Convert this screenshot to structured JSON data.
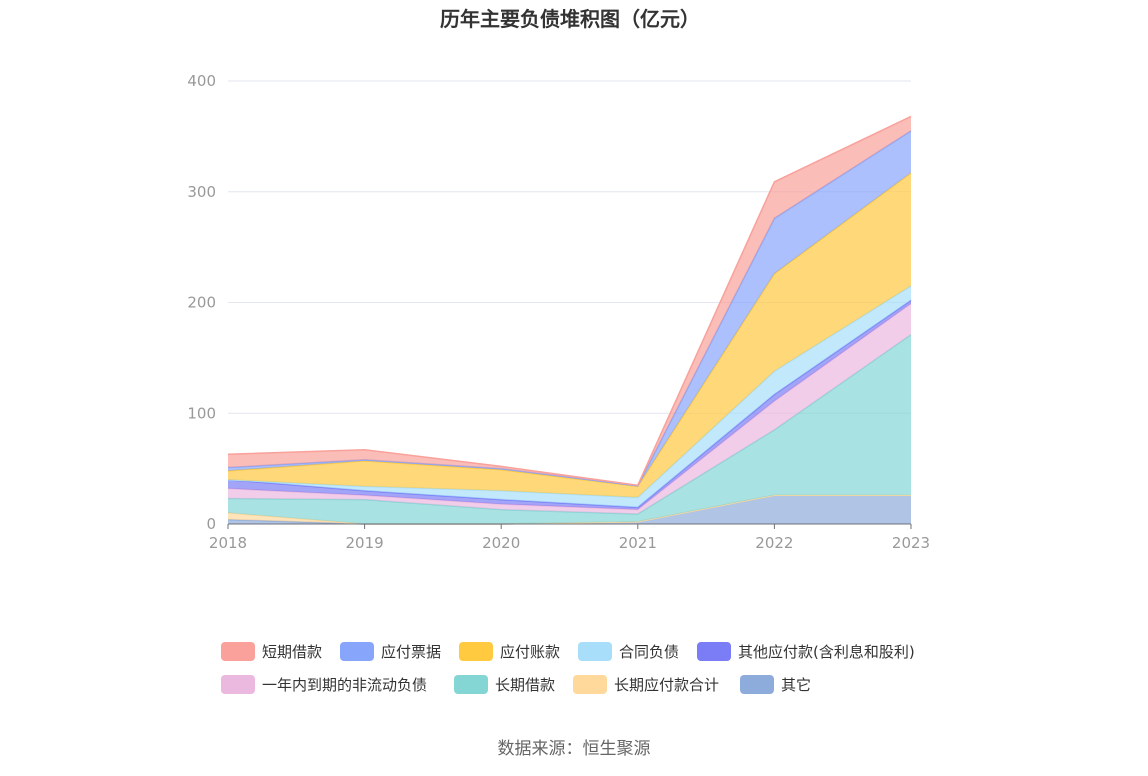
{
  "chart_data": {
    "type": "area",
    "stacked": true,
    "title": "历年主要负债堆积图（亿元）",
    "source": "数据来源：恒生聚源",
    "x": [
      "2018",
      "2019",
      "2020",
      "2021",
      "2022",
      "2023"
    ],
    "yticks": [
      "0",
      "100",
      "200",
      "300",
      "400"
    ],
    "ylim": [
      0,
      400
    ],
    "grid": true,
    "legend_position": "bottom",
    "series_order_bottom_to_top": [
      "其它",
      "长期应付款合计",
      "长期借款",
      "一年内到期的非流动负债",
      "其他应付款(含利息和股利)",
      "合同负债",
      "应付账款",
      "应付票据",
      "短期借款"
    ],
    "series": [
      {
        "name": "短期借款",
        "color": "#F9A19A",
        "values": [
          12,
          9,
          2,
          0.5,
          33,
          13
        ]
      },
      {
        "name": "应付票据",
        "color": "#87A5FB",
        "values": [
          3,
          1,
          1,
          0.5,
          50,
          38
        ]
      },
      {
        "name": "应付账款",
        "color": "#FFC940",
        "values": [
          8,
          23,
          19,
          10,
          88,
          102
        ]
      },
      {
        "name": "合同负债",
        "color": "#A8DEFA",
        "values": [
          0,
          4,
          8,
          9,
          21,
          13
        ]
      },
      {
        "name": "其他应付款(含利息和股利)",
        "color": "#7A7DF5",
        "values": [
          8,
          4,
          4,
          2,
          6,
          3
        ]
      },
      {
        "name": "一年内到期的非流动负债",
        "color": "#EBB8DF",
        "values": [
          9,
          4,
          5,
          4,
          26,
          28
        ]
      },
      {
        "name": "长期借款",
        "color": "#84D6D5",
        "values": [
          13,
          22,
          13,
          7,
          59,
          145
        ]
      },
      {
        "name": "长期应付款合计",
        "color": "#FFD89C",
        "values": [
          6,
          0,
          0,
          0,
          0,
          0
        ]
      },
      {
        "name": "其它",
        "color": "#8EACDB",
        "values": [
          4,
          0,
          0,
          2,
          26,
          26
        ]
      }
    ]
  }
}
